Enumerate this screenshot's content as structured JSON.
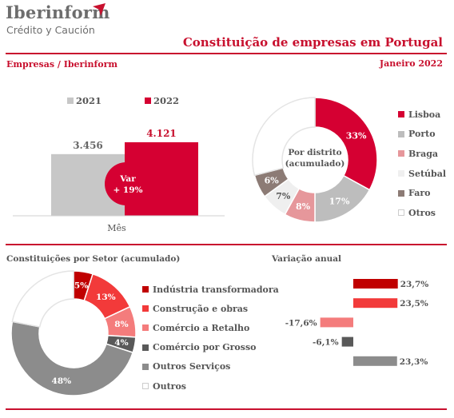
{
  "header": {
    "logo_name": "Iberinform",
    "logo_sub": "Crédito y Caución",
    "title": "Constituição de empresas em Portugal",
    "subtitle_left": "Empresas / Iberinform",
    "subtitle_right": "Janeiro 2022"
  },
  "colors": {
    "brand_red": "#c8102e",
    "grey_bar": "#c7c7c7"
  },
  "chart_data": [
    {
      "type": "bar",
      "xlabel": "Mês",
      "series": [
        {
          "name": "2021",
          "value": 3456,
          "label": "3.456",
          "color": "#c7c7c7"
        },
        {
          "name": "2022",
          "value": 4121,
          "label": "4.121",
          "color": "#d50032"
        }
      ],
      "badge": {
        "line1": "Var",
        "line2": "+ 19%"
      },
      "legend_placement": "top"
    },
    {
      "type": "pie",
      "center_label": [
        "Por distrito",
        "(acumulado)"
      ],
      "slices": [
        {
          "name": "Lisboa",
          "value": 33,
          "label": "33%",
          "color": "#d50032"
        },
        {
          "name": "Porto",
          "value": 17,
          "label": "17%",
          "color": "#bdbdbd"
        },
        {
          "name": "Braga",
          "value": 8,
          "label": "8%",
          "color": "#e6979b"
        },
        {
          "name": "Setúbal",
          "value": 7,
          "label": "7%",
          "color": "#efefef"
        },
        {
          "name": "Faro",
          "value": 6,
          "label": "6%",
          "color": "#8c7b75"
        },
        {
          "name": "Otros",
          "value": 29,
          "label": "",
          "color": "#ffffff"
        }
      ],
      "legend_placement": "right"
    },
    {
      "type": "pie",
      "title": "Constituições por Setor (acumulado)",
      "slices": [
        {
          "name": "Indústria transformadora",
          "value": 5,
          "label": "5%",
          "color": "#c00000"
        },
        {
          "name": "Construção e obras",
          "value": 13,
          "label": "13%",
          "color": "#f23a3a"
        },
        {
          "name": "Comércio a Retalho",
          "value": 8,
          "label": "8%",
          "color": "#f47c7c"
        },
        {
          "name": "Comércio por Grosso",
          "value": 4,
          "label": "4%",
          "color": "#595959"
        },
        {
          "name": "Outros Serviços",
          "value": 48,
          "label": "48%",
          "color": "#8c8c8c"
        },
        {
          "name": "Outros",
          "value": 22,
          "label": "",
          "color": "#ffffff"
        }
      ],
      "legend_placement": "right"
    },
    {
      "type": "bar",
      "title": "Variação anual",
      "orientation": "horizontal",
      "values": [
        23.7,
        23.5,
        -17.6,
        -6.1,
        23.3
      ],
      "labels": [
        "23,7%",
        "23,5%",
        "-17,6%",
        "-6,1%",
        "23,3%"
      ],
      "colors": [
        "#c00000",
        "#f23a3a",
        "#f47c7c",
        "#595959",
        "#8c8c8c"
      ]
    }
  ]
}
